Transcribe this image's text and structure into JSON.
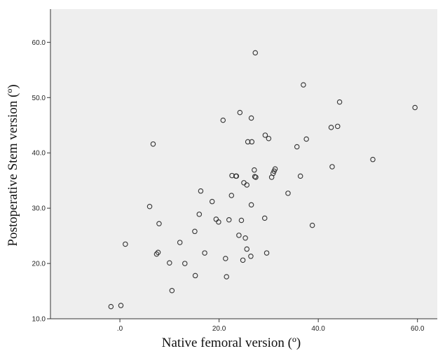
{
  "chart_data": {
    "type": "scatter",
    "xlabel": "Native femoral version (º)",
    "ylabel": "Postoperative Stem version (º)",
    "xlim": [
      -14,
      64
    ],
    "ylim": [
      10,
      66
    ],
    "xticks": [
      ".0",
      "20.0",
      "40.0",
      "60.0"
    ],
    "yticks": [
      "10.0",
      "20.0",
      "30.0",
      "40.0",
      "50.0",
      "60.0"
    ],
    "grid": false,
    "plot_background": "#eeeeee",
    "marker_color": "#333333",
    "x": [
      -1.8,
      0.2,
      1.1,
      6.0,
      6.7,
      7.4,
      7.7,
      7.9,
      10.0,
      10.5,
      12.1,
      13.1,
      15.1,
      15.2,
      16.0,
      16.3,
      17.1,
      18.6,
      19.4,
      19.9,
      20.8,
      21.3,
      21.5,
      22.0,
      22.5,
      22.6,
      23.4,
      23.5,
      24.0,
      24.2,
      24.5,
      24.8,
      25.0,
      25.3,
      25.6,
      25.6,
      25.8,
      26.4,
      26.5,
      26.5,
      26.6,
      27.1,
      27.2,
      27.3,
      27.4,
      29.2,
      29.3,
      29.6,
      30.0,
      30.6,
      30.9,
      31.1,
      31.3,
      33.9,
      35.7,
      36.4,
      37.0,
      37.6,
      38.8,
      42.6,
      42.8,
      43.9,
      44.3,
      51.0,
      59.5
    ],
    "y": [
      12.2,
      12.4,
      23.5,
      30.3,
      41.6,
      21.7,
      22.0,
      27.2,
      20.1,
      15.1,
      23.8,
      20.0,
      25.8,
      17.8,
      28.9,
      33.1,
      21.9,
      31.2,
      28.0,
      27.5,
      45.9,
      20.9,
      17.6,
      27.9,
      32.3,
      35.9,
      35.8,
      35.8,
      25.1,
      47.3,
      27.8,
      20.6,
      34.6,
      24.6,
      22.6,
      34.2,
      42.0,
      21.3,
      30.6,
      46.3,
      42.0,
      36.9,
      35.7,
      58.1,
      35.6,
      28.2,
      43.2,
      21.9,
      42.6,
      35.6,
      36.3,
      36.7,
      37.1,
      32.7,
      41.1,
      35.8,
      52.3,
      42.5,
      26.9,
      44.6,
      37.5,
      44.8,
      49.2,
      38.8,
      48.2
    ]
  }
}
